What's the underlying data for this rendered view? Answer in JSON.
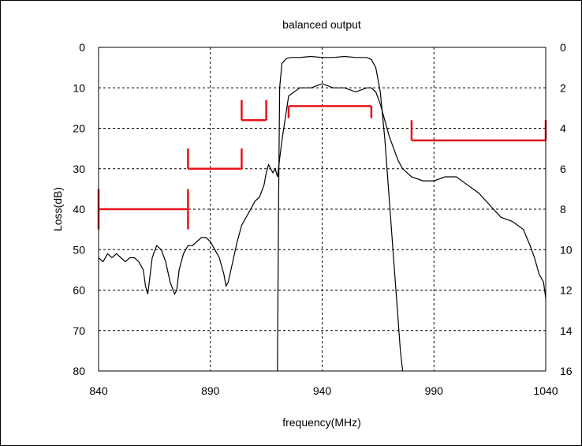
{
  "chart_data": {
    "type": "line",
    "title": "balanced output",
    "xlabel": "frequency(MHz)",
    "ylabel": "Loss(dB)",
    "y2label": "",
    "xlim": [
      840,
      1040
    ],
    "ylim": [
      80,
      0
    ],
    "y2lim": [
      16,
      0
    ],
    "x_ticks": [
      "840",
      "890",
      "940",
      "990",
      "1040"
    ],
    "y_ticks": [
      "0",
      "10",
      "20",
      "30",
      "40",
      "50",
      "60",
      "70",
      "80"
    ],
    "y2_ticks": [
      "0",
      "2",
      "4",
      "6",
      "8",
      "10",
      "12",
      "14",
      "16"
    ],
    "grid": true,
    "series": [
      {
        "axis": "left",
        "color": "#000000",
        "x": [
          840,
          842,
          844,
          846,
          848,
          850,
          852,
          854,
          856,
          858,
          860,
          861,
          862,
          864,
          866,
          868,
          870,
          872,
          874,
          875,
          876,
          878,
          880,
          882,
          884,
          886,
          888,
          890,
          892,
          894,
          896,
          897,
          898,
          900,
          902,
          904,
          906,
          908,
          910,
          912,
          914,
          915,
          916,
          917,
          918,
          919,
          920,
          922,
          925,
          930,
          935,
          940,
          945,
          950,
          955,
          960,
          962,
          964,
          966,
          968,
          970,
          972,
          974,
          976,
          978,
          980,
          985,
          990,
          995,
          1000,
          1005,
          1010,
          1015,
          1020,
          1025,
          1030,
          1033,
          1035,
          1037,
          1039,
          1040
        ],
        "y": [
          52,
          53,
          51,
          52,
          51,
          52,
          53,
          52,
          52,
          53,
          55,
          59,
          61,
          52,
          49,
          50,
          53,
          58,
          61,
          60,
          55,
          51,
          49,
          49,
          48,
          47,
          47,
          48,
          50,
          52,
          56,
          59,
          58,
          53,
          48,
          44,
          42,
          40,
          38,
          37,
          34,
          31,
          29,
          30,
          31,
          30,
          32,
          23,
          12,
          10,
          10,
          9,
          10,
          10,
          11,
          10,
          10,
          11,
          14,
          18,
          22,
          25,
          28,
          30,
          31,
          32,
          33,
          33,
          32,
          32,
          34,
          36,
          39,
          42,
          43,
          45,
          49,
          52,
          56,
          58,
          62
        ]
      },
      {
        "axis": "right",
        "color": "#000000",
        "x": [
          920,
          920.5,
          921,
          922,
          924,
          926,
          930,
          935,
          940,
          945,
          950,
          955,
          960,
          962,
          964,
          966,
          968,
          970,
          972,
          974,
          975,
          976
        ],
        "y": [
          16,
          8,
          2,
          0.8,
          0.55,
          0.5,
          0.5,
          0.45,
          0.5,
          0.5,
          0.45,
          0.5,
          0.5,
          0.6,
          1.0,
          2.2,
          4.5,
          7.5,
          10.5,
          13.5,
          15,
          16
        ]
      }
    ],
    "mask": {
      "color": "#e8141b",
      "segments": [
        {
          "x": [
            840,
            880
          ],
          "y": 40,
          "end_tick_low": 35,
          "end_tick_high": 45
        },
        {
          "x": [
            880,
            904
          ],
          "y": 30,
          "end_tick_low": 25,
          "end_tick_high": 30
        },
        {
          "x": [
            904,
            915
          ],
          "y": 18,
          "end_tick_low": 13,
          "end_tick_high": 18
        },
        {
          "x": [
            925,
            962
          ],
          "y": 14.5,
          "end_tick_low": 14.5,
          "end_tick_high": 17.5
        },
        {
          "x": [
            980,
            1040
          ],
          "y": 23,
          "end_tick_low": 18,
          "end_tick_high": 23
        }
      ]
    }
  }
}
